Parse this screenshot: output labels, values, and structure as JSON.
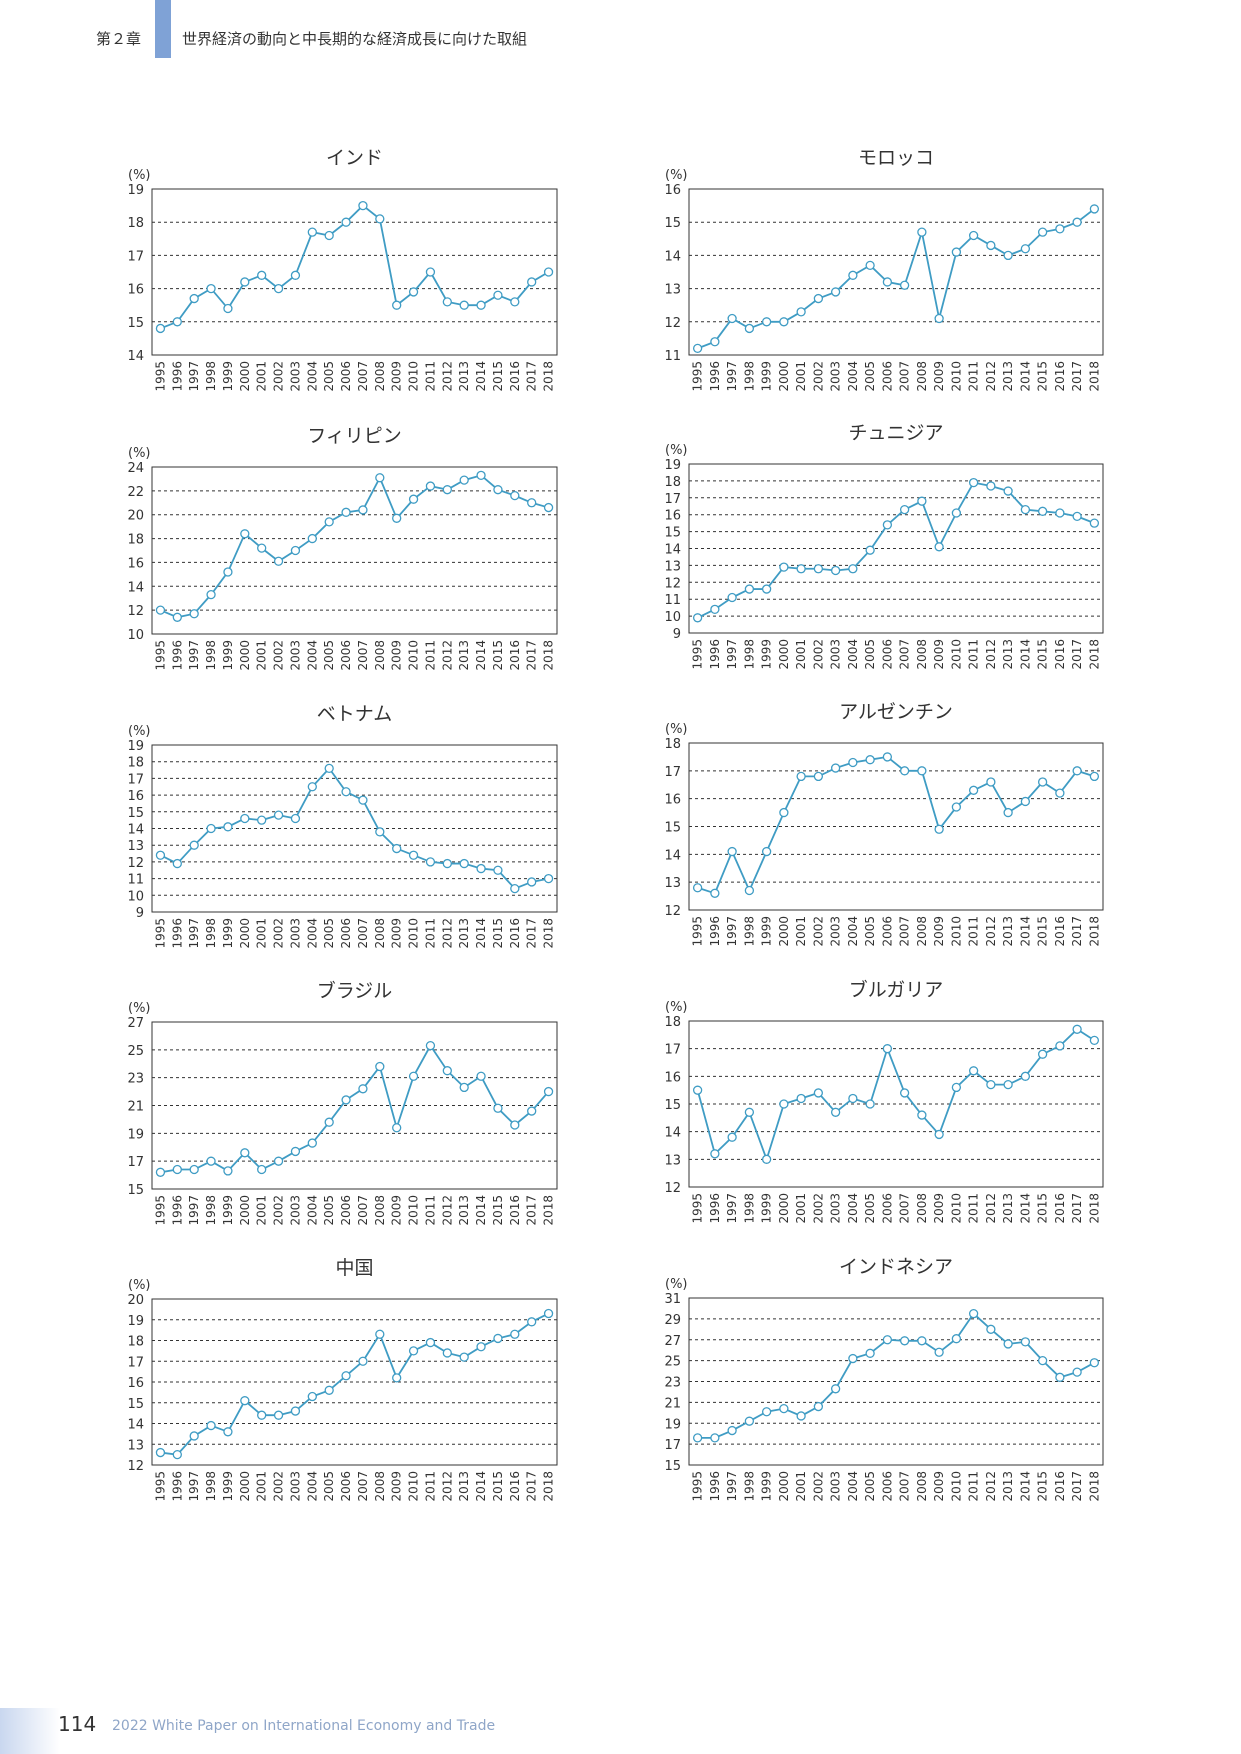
{
  "header": {
    "chapter": "第２章",
    "title": "世界経済の動向と中長期的な経済成長に向けた取組"
  },
  "footer": {
    "page_number": "114",
    "publication": "2022 White Paper on International Economy and Trade"
  },
  "colors": {
    "line": "#3f9cc4",
    "marker_fill": "#ffffff",
    "grid": "#333333"
  },
  "chart_data": [
    {
      "type": "line",
      "title": "インド",
      "unit_label": "(%)",
      "x": [
        "1995",
        "1996",
        "1997",
        "1998",
        "1999",
        "2000",
        "2001",
        "2002",
        "2003",
        "2004",
        "2005",
        "2006",
        "2007",
        "2008",
        "2009",
        "2010",
        "2011",
        "2012",
        "2013",
        "2014",
        "2015",
        "2016",
        "2017",
        "2018"
      ],
      "ylim": [
        14,
        19
      ],
      "yticks": [
        14,
        15,
        16,
        17,
        18,
        19
      ],
      "values": [
        14.8,
        15.0,
        15.7,
        16.0,
        15.4,
        16.2,
        16.4,
        16.0,
        16.4,
        17.7,
        17.6,
        18.0,
        18.5,
        18.1,
        15.5,
        15.9,
        16.5,
        15.6,
        15.5,
        15.5,
        15.8,
        15.6,
        16.2,
        16.5
      ]
    },
    {
      "type": "line",
      "title": "モロッコ",
      "unit_label": "(%)",
      "x": [
        "1995",
        "1996",
        "1997",
        "1998",
        "1999",
        "2000",
        "2001",
        "2002",
        "2003",
        "2004",
        "2005",
        "2006",
        "2007",
        "2008",
        "2009",
        "2010",
        "2011",
        "2012",
        "2013",
        "2014",
        "2015",
        "2016",
        "2017",
        "2018"
      ],
      "ylim": [
        11,
        16
      ],
      "yticks": [
        11,
        12,
        13,
        14,
        15,
        16
      ],
      "values": [
        11.2,
        11.4,
        12.1,
        11.8,
        12.0,
        12.0,
        12.3,
        12.7,
        12.9,
        13.4,
        13.7,
        13.2,
        13.1,
        14.7,
        12.1,
        14.1,
        14.6,
        14.3,
        14.0,
        14.2,
        14.7,
        14.8,
        15.0,
        15.4
      ]
    },
    {
      "type": "line",
      "title": "フィリピン",
      "unit_label": "(%)",
      "x": [
        "1995",
        "1996",
        "1997",
        "1998",
        "1999",
        "2000",
        "2001",
        "2002",
        "2003",
        "2004",
        "2005",
        "2006",
        "2007",
        "2008",
        "2009",
        "2010",
        "2011",
        "2012",
        "2013",
        "2014",
        "2015",
        "2016",
        "2017",
        "2018"
      ],
      "ylim": [
        10,
        24
      ],
      "yticks": [
        10,
        12,
        14,
        16,
        18,
        20,
        22,
        24
      ],
      "values": [
        12.0,
        11.4,
        11.7,
        13.3,
        15.2,
        18.4,
        17.2,
        16.1,
        17.0,
        18.0,
        19.4,
        20.2,
        20.4,
        23.1,
        19.7,
        21.3,
        22.4,
        22.1,
        22.9,
        23.3,
        22.1,
        21.6,
        21.0,
        20.6
      ]
    },
    {
      "type": "line",
      "title": "チュニジア",
      "unit_label": "(%)",
      "x": [
        "1995",
        "1996",
        "1997",
        "1998",
        "1999",
        "2000",
        "2001",
        "2002",
        "2003",
        "2004",
        "2005",
        "2006",
        "2007",
        "2008",
        "2009",
        "2010",
        "2011",
        "2012",
        "2013",
        "2014",
        "2015",
        "2016",
        "2017",
        "2018"
      ],
      "ylim": [
        9,
        19
      ],
      "yticks": [
        9,
        10,
        11,
        12,
        13,
        14,
        15,
        16,
        17,
        18,
        19
      ],
      "values": [
        9.9,
        10.4,
        11.1,
        11.6,
        11.6,
        12.9,
        12.8,
        12.8,
        12.7,
        12.8,
        13.9,
        15.4,
        16.3,
        16.8,
        14.1,
        16.1,
        17.9,
        17.7,
        17.4,
        16.3,
        16.2,
        16.1,
        15.9,
        15.5
      ]
    },
    {
      "type": "line",
      "title": "ベトナム",
      "unit_label": "(%)",
      "x": [
        "1995",
        "1996",
        "1997",
        "1998",
        "1999",
        "2000",
        "2001",
        "2002",
        "2003",
        "2004",
        "2005",
        "2006",
        "2007",
        "2008",
        "2009",
        "2010",
        "2011",
        "2012",
        "2013",
        "2014",
        "2015",
        "2016",
        "2017",
        "2018"
      ],
      "ylim": [
        9,
        19
      ],
      "yticks": [
        9,
        10,
        11,
        12,
        13,
        14,
        15,
        16,
        17,
        18,
        19
      ],
      "values": [
        12.4,
        11.9,
        13.0,
        14.0,
        14.1,
        14.6,
        14.5,
        14.8,
        14.6,
        16.5,
        17.6,
        16.2,
        15.7,
        13.8,
        12.8,
        12.4,
        12.0,
        11.9,
        11.9,
        11.6,
        11.5,
        10.4,
        10.8,
        11.0
      ]
    },
    {
      "type": "line",
      "title": "アルゼンチン",
      "unit_label": "(%)",
      "x": [
        "1995",
        "1996",
        "1997",
        "1998",
        "1999",
        "2000",
        "2001",
        "2002",
        "2003",
        "2004",
        "2005",
        "2006",
        "2007",
        "2008",
        "2009",
        "2010",
        "2011",
        "2012",
        "2013",
        "2014",
        "2015",
        "2016",
        "2017",
        "2018"
      ],
      "ylim": [
        12,
        18
      ],
      "yticks": [
        12,
        13,
        14,
        15,
        16,
        17,
        18
      ],
      "values": [
        12.8,
        12.6,
        14.1,
        12.7,
        14.1,
        15.5,
        16.8,
        16.8,
        17.1,
        17.3,
        17.4,
        17.5,
        17.0,
        17.0,
        14.9,
        15.7,
        16.3,
        16.6,
        15.5,
        15.9,
        16.6,
        16.2,
        17.0,
        16.8
      ]
    },
    {
      "type": "line",
      "title": "ブラジル",
      "unit_label": "(%)",
      "x": [
        "1995",
        "1996",
        "1997",
        "1998",
        "1999",
        "2000",
        "2001",
        "2002",
        "2003",
        "2004",
        "2005",
        "2006",
        "2007",
        "2008",
        "2009",
        "2010",
        "2011",
        "2012",
        "2013",
        "2014",
        "2015",
        "2016",
        "2017",
        "2018"
      ],
      "ylim": [
        15,
        27
      ],
      "yticks": [
        15,
        17,
        19,
        21,
        23,
        25,
        27
      ],
      "values": [
        16.2,
        16.4,
        16.4,
        17.0,
        16.3,
        17.6,
        16.4,
        17.0,
        17.7,
        18.3,
        19.8,
        21.4,
        22.2,
        23.8,
        19.4,
        23.1,
        25.3,
        23.5,
        22.3,
        23.1,
        20.8,
        19.6,
        20.6,
        22.0
      ]
    },
    {
      "type": "line",
      "title": "ブルガリア",
      "unit_label": "(%)",
      "x": [
        "1995",
        "1996",
        "1997",
        "1998",
        "1999",
        "2000",
        "2001",
        "2002",
        "2003",
        "2004",
        "2005",
        "2006",
        "2007",
        "2008",
        "2009",
        "2010",
        "2011",
        "2012",
        "2013",
        "2014",
        "2015",
        "2016",
        "2017",
        "2018"
      ],
      "ylim": [
        12,
        18
      ],
      "yticks": [
        12,
        13,
        14,
        15,
        16,
        17,
        18
      ],
      "values": [
        15.5,
        13.2,
        13.8,
        14.7,
        13.0,
        15.0,
        15.2,
        15.4,
        14.7,
        15.2,
        15.0,
        17.0,
        15.4,
        14.6,
        13.9,
        15.6,
        16.2,
        15.7,
        15.7,
        16.0,
        16.8,
        17.1,
        17.7,
        17.3
      ]
    },
    {
      "type": "line",
      "title": "中国",
      "unit_label": "(%)",
      "x": [
        "1995",
        "1996",
        "1997",
        "1998",
        "1999",
        "2000",
        "2001",
        "2002",
        "2003",
        "2004",
        "2005",
        "2006",
        "2007",
        "2008",
        "2009",
        "2010",
        "2011",
        "2012",
        "2013",
        "2014",
        "2015",
        "2016",
        "2017",
        "2018"
      ],
      "ylim": [
        12,
        20
      ],
      "yticks": [
        12,
        13,
        14,
        15,
        16,
        17,
        18,
        19,
        20
      ],
      "values": [
        12.6,
        12.5,
        13.4,
        13.9,
        13.6,
        15.1,
        14.4,
        14.4,
        14.6,
        15.3,
        15.6,
        16.3,
        17.0,
        18.3,
        16.2,
        17.5,
        17.9,
        17.4,
        17.2,
        17.7,
        18.1,
        18.3,
        18.9,
        19.3
      ]
    },
    {
      "type": "line",
      "title": "インドネシア",
      "unit_label": "(%)",
      "x": [
        "1995",
        "1996",
        "1997",
        "1998",
        "1999",
        "2000",
        "2001",
        "2002",
        "2003",
        "2004",
        "2005",
        "2006",
        "2007",
        "2008",
        "2009",
        "2010",
        "2011",
        "2012",
        "2013",
        "2014",
        "2015",
        "2016",
        "2017",
        "2018"
      ],
      "ylim": [
        15,
        31
      ],
      "yticks": [
        15,
        17,
        19,
        21,
        23,
        25,
        27,
        29,
        31
      ],
      "values": [
        17.6,
        17.6,
        18.3,
        19.2,
        20.1,
        20.4,
        19.7,
        20.6,
        22.3,
        25.2,
        25.7,
        27.0,
        26.9,
        26.9,
        25.8,
        27.1,
        29.5,
        28.0,
        26.6,
        26.8,
        25.0,
        23.4,
        23.9,
        24.8
      ]
    }
  ]
}
